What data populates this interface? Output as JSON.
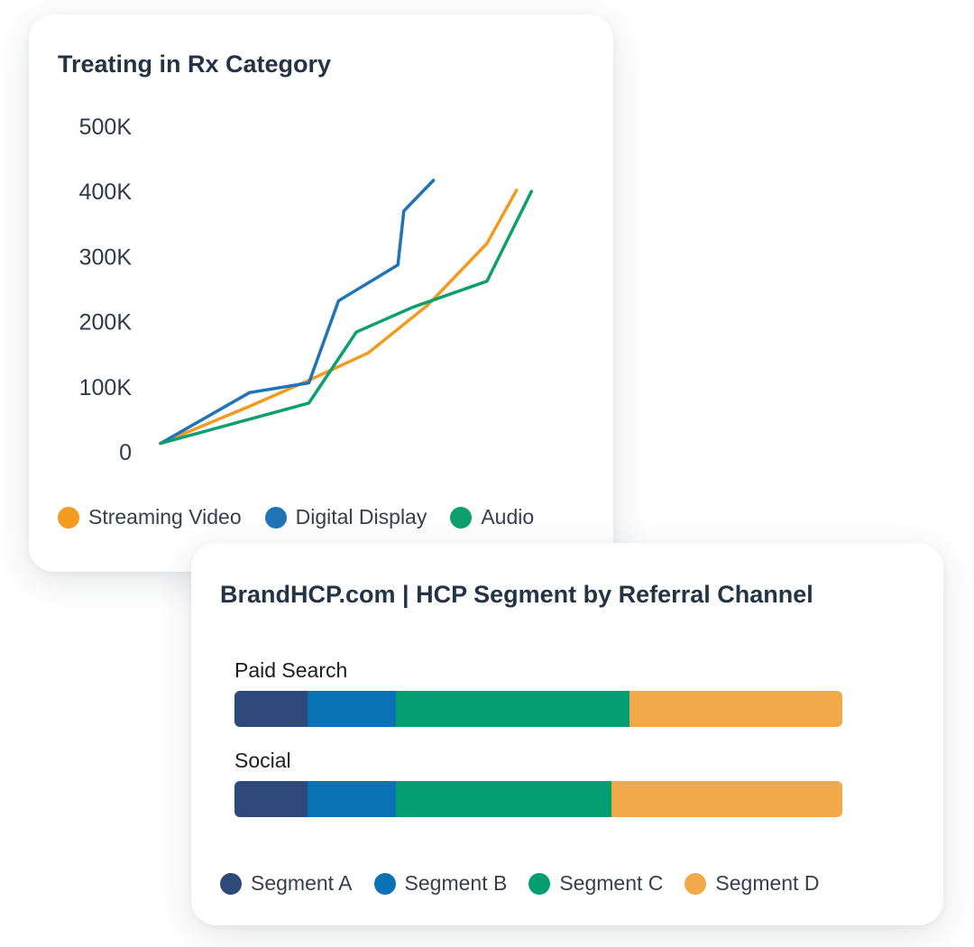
{
  "line_card": {
    "title": "Treating in Rx Category"
  },
  "bar_card": {
    "title": "BrandHCP.com | HCP Segment by Referral Channel"
  },
  "chart_data": [
    {
      "type": "line",
      "title": "Treating in Rx Category",
      "xlabel": "",
      "ylabel": "",
      "ylim": [
        0,
        500000
      ],
      "y_ticks": [
        0,
        100000,
        200000,
        300000,
        400000,
        500000
      ],
      "y_tick_labels": [
        "0",
        "100K",
        "200K",
        "300K",
        "400K",
        "500K"
      ],
      "grid": false,
      "legend_position": "bottom",
      "series": [
        {
          "name": "Streaming Video",
          "color": "#F39A20",
          "points": [
            [
              0,
              13000
            ],
            [
              3,
              70000
            ],
            [
              5,
              110000
            ],
            [
              7,
              152000
            ],
            [
              9,
              225000
            ],
            [
              11,
              320000
            ],
            [
              12,
              402000
            ]
          ]
        },
        {
          "name": "Digital Display",
          "color": "#1F73B7",
          "points": [
            [
              0,
              13000
            ],
            [
              3,
              91000
            ],
            [
              5,
              106000
            ],
            [
              6,
              232000
            ],
            [
              8,
              287000
            ],
            [
              8.2,
              370000
            ],
            [
              9.2,
              417000
            ]
          ]
        },
        {
          "name": "Audio",
          "color": "#0E9F6E",
          "points": [
            [
              0,
              13000
            ],
            [
              5,
              75000
            ],
            [
              6.6,
              184000
            ],
            [
              8.5,
              222000
            ],
            [
              11,
              262000
            ],
            [
              12.5,
              400000
            ]
          ]
        }
      ]
    },
    {
      "type": "bar",
      "orientation": "horizontal",
      "stacked": true,
      "title": "BrandHCP.com | HCP Segment by Referral Channel",
      "categories": [
        "Paid Search",
        "Social"
      ],
      "xlim": [
        0,
        100
      ],
      "legend_position": "bottom",
      "series": [
        {
          "name": "Segment A",
          "color": "#2F4A7A",
          "values": [
            12,
            12
          ]
        },
        {
          "name": "Segment B",
          "color": "#0872B5",
          "values": [
            14.5,
            14.5
          ]
        },
        {
          "name": "Segment C",
          "color": "#049E72",
          "values": [
            38.5,
            35.5
          ]
        },
        {
          "name": "Segment D",
          "color": "#F2A94A",
          "values": [
            35,
            38
          ]
        }
      ]
    }
  ]
}
